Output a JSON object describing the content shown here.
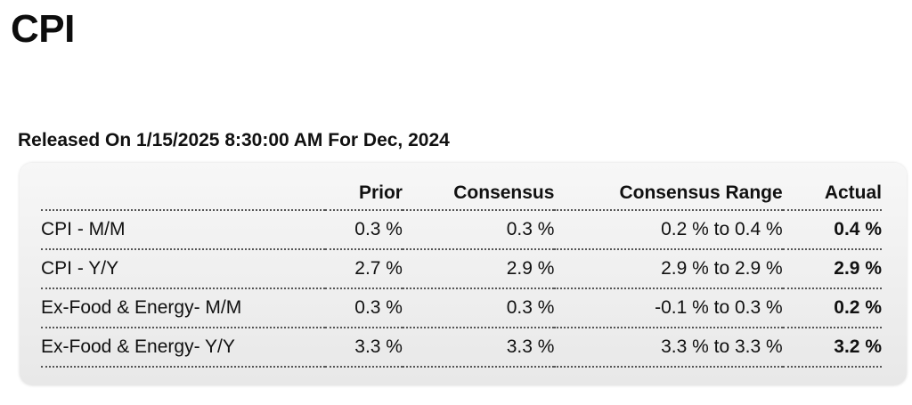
{
  "title": "CPI",
  "release": "Released On 1/15/2025 8:30:00 AM For Dec, 2024",
  "table": {
    "headers": {
      "label": "",
      "prior": "Prior",
      "consensus": "Consensus",
      "range": "Consensus Range",
      "actual": "Actual"
    },
    "rows": [
      {
        "label": "CPI - M/M",
        "prior": "0.3 %",
        "consensus": "0.3 %",
        "range": "0.2 % to 0.4 %",
        "actual": "0.4 %"
      },
      {
        "label": "CPI - Y/Y",
        "prior": "2.7 %",
        "consensus": "2.9 %",
        "range": "2.9 % to 2.9 %",
        "actual": "2.9 %"
      },
      {
        "label": "Ex-Food & Energy- M/M",
        "prior": "0.3 %",
        "consensus": "0.3 %",
        "range": "-0.1 % to 0.3 %",
        "actual": "0.2 %"
      },
      {
        "label": "Ex-Food & Energy- Y/Y",
        "prior": "3.3 %",
        "consensus": "3.3 %",
        "range": "3.3 % to 3.3 %",
        "actual": "3.2 %"
      }
    ]
  }
}
